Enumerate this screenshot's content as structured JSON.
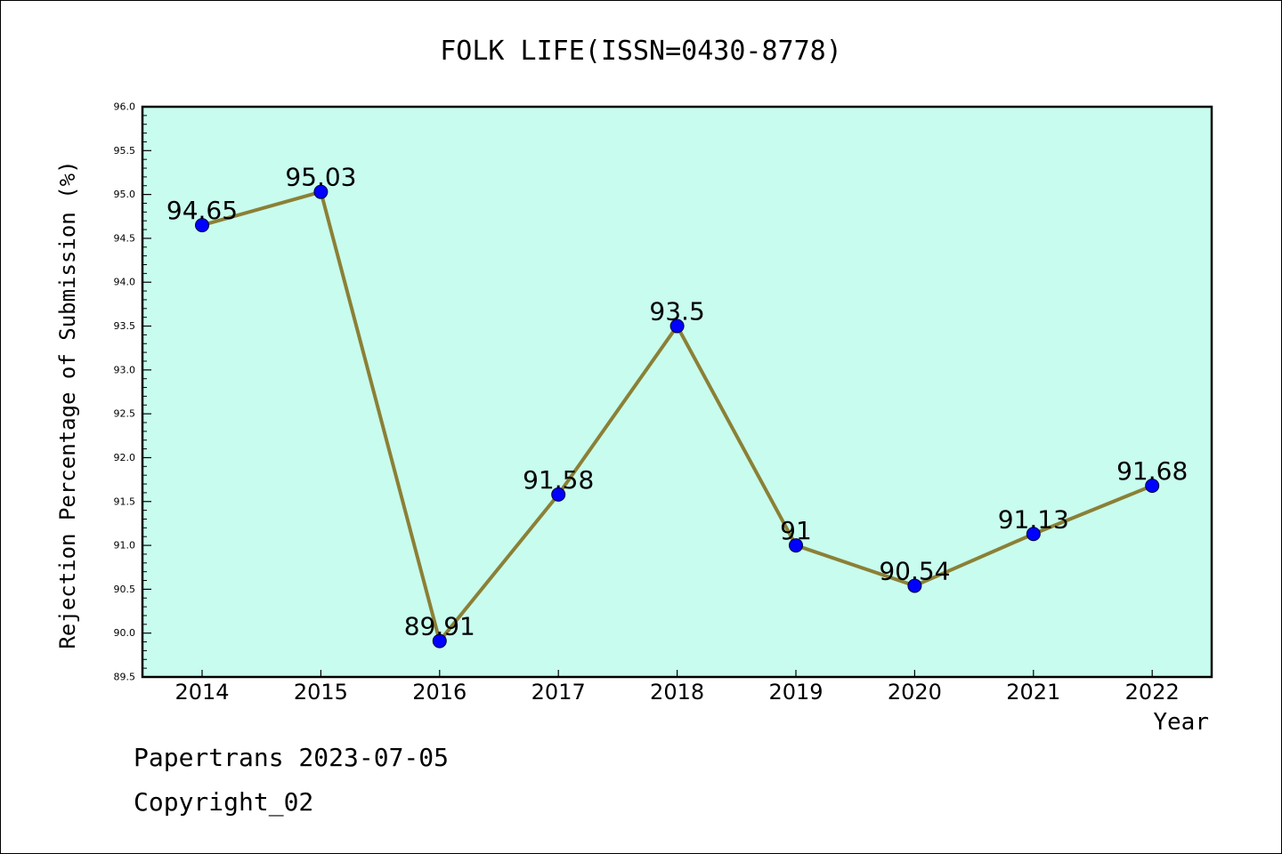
{
  "chart_data": {
    "type": "line",
    "title": "FOLK LIFE(ISSN=0430-8778)",
    "xlabel": "Year",
    "ylabel": "Rejection Percentage of Submission (%)",
    "categories": [
      "2014",
      "2015",
      "2016",
      "2017",
      "2018",
      "2019",
      "2020",
      "2021",
      "2022"
    ],
    "series": [
      {
        "values": [
          94.65,
          95.03,
          89.91,
          91.58,
          93.5,
          91,
          90.54,
          91.13,
          91.68
        ],
        "labels": [
          "94.65",
          "95.03",
          "89.91",
          "91.58",
          "93.5",
          "91",
          "90.54",
          "91.13",
          "91.68"
        ],
        "line_color": "#8b8036",
        "marker_color": "#0000ff"
      }
    ],
    "ylim": [
      89.5,
      96.0
    ],
    "yticks": [
      "89.5",
      "90.0",
      "90.5",
      "91.0",
      "91.5",
      "92.0",
      "92.5",
      "93.0",
      "93.5",
      "94.0",
      "94.5",
      "95.0",
      "95.5",
      "96.0"
    ],
    "plot_background": "#c8fcee",
    "grid": false,
    "legend": "none"
  },
  "footer": {
    "line1": "Papertrans 2023-07-05",
    "line2": "Copyright_02"
  }
}
